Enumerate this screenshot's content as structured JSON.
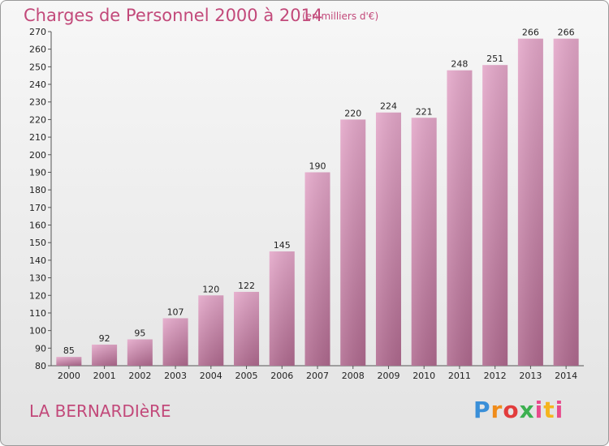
{
  "header": {
    "title": "Charges de Personnel 2000 à 2014",
    "subtitle": "(en milliers d'€)"
  },
  "footer": {
    "commune": "LA BERNARDIèRE",
    "logo_text": "Proxiti"
  },
  "colors": {
    "title": "#c2497a",
    "bar_top": "#e4a7c9",
    "bar_bottom": "#b06a8f"
  },
  "chart_data": {
    "type": "bar",
    "title": "Charges de Personnel 2000 à 2014",
    "subtitle": "(en milliers d'€)",
    "xlabel": "",
    "ylabel": "",
    "categories": [
      "2000",
      "2001",
      "2002",
      "2003",
      "2004",
      "2005",
      "2006",
      "2007",
      "2008",
      "2009",
      "2010",
      "2011",
      "2012",
      "2013",
      "2014"
    ],
    "values": [
      85,
      92,
      95,
      107,
      120,
      122,
      145,
      190,
      220,
      224,
      221,
      248,
      251,
      266,
      266
    ],
    "ylim": [
      80,
      270
    ],
    "ytick_step": 10,
    "grid": false,
    "legend": "none",
    "data_labels": true
  }
}
